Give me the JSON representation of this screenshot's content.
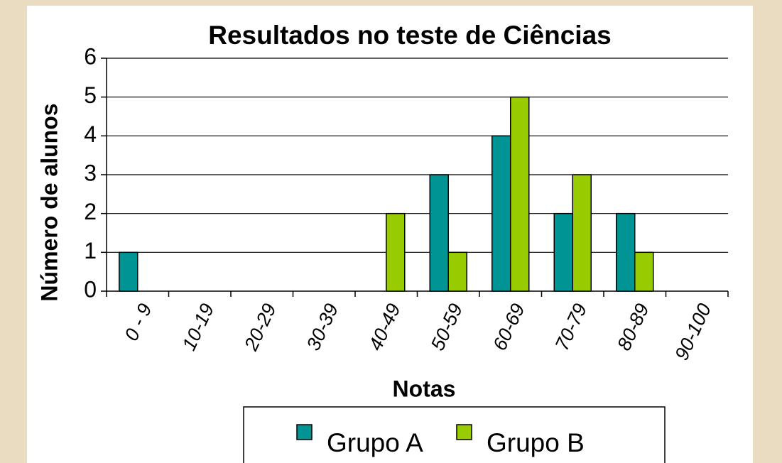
{
  "chart_data": {
    "type": "bar",
    "title": "Resultados no teste de Ciências",
    "x_label": "Notas",
    "y_label": "Número de alunos",
    "categories": [
      "0 - 9",
      "10-19",
      "20-29",
      "30-39",
      "40-49",
      "50-59",
      "60-69",
      "70-79",
      "80-89",
      "90-100"
    ],
    "series": [
      {
        "name": "Grupo A",
        "color": "#009494",
        "values": [
          1,
          0,
          0,
          0,
          0,
          3,
          4,
          2,
          2,
          0
        ]
      },
      {
        "name": "Grupo B",
        "color": "#99cc00",
        "values": [
          0,
          0,
          0,
          0,
          2,
          1,
          5,
          3,
          1,
          0
        ]
      }
    ],
    "ylim": [
      0,
      6
    ],
    "yticks": [
      0,
      1,
      2,
      3,
      4,
      5,
      6
    ],
    "grid": true,
    "legend": "bottom"
  }
}
